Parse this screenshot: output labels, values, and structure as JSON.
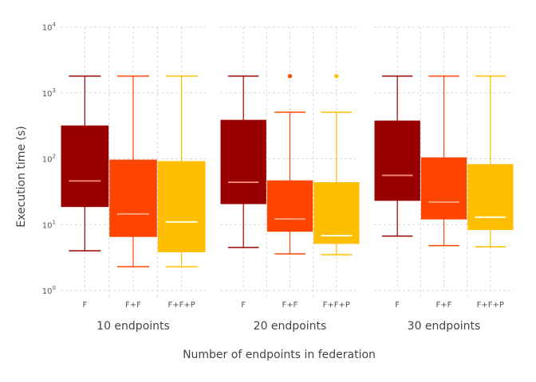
{
  "chart_data": {
    "type": "box",
    "xlabel": "Number of endpoints in federation",
    "ylabel": "Execution time (s)",
    "yscale": "log",
    "ylim": [
      1,
      10000
    ],
    "yticks": [
      {
        "value": 1,
        "base": "10",
        "exp": "0"
      },
      {
        "value": 10,
        "base": "10",
        "exp": "1"
      },
      {
        "value": 100,
        "base": "10",
        "exp": "2"
      },
      {
        "value": 1000,
        "base": "10",
        "exp": "3"
      },
      {
        "value": 10000,
        "base": "10",
        "exp": "4"
      }
    ],
    "colors": {
      "F": "#990000",
      "F+F": "#ff4500",
      "F+F+P": "#ffbf00"
    },
    "median_colors": {
      "F": "#f08070",
      "F+F": "#ffa07a",
      "F+F+P": "#ffffe0"
    },
    "groups": [
      {
        "label": "10 endpoints",
        "boxes": [
          {
            "category": "F",
            "whisker_low": 4.0,
            "q1": 18.5,
            "median": 46,
            "q3": 320,
            "whisker_high": 1800,
            "outliers": []
          },
          {
            "category": "F+F",
            "whisker_low": 2.3,
            "q1": 6.5,
            "median": 14.5,
            "q3": 97,
            "whisker_high": 1800,
            "outliers": []
          },
          {
            "category": "F+F+P",
            "whisker_low": 2.3,
            "q1": 3.8,
            "median": 11,
            "q3": 92,
            "whisker_high": 1800,
            "outliers": []
          }
        ]
      },
      {
        "label": "20 endpoints",
        "boxes": [
          {
            "category": "F",
            "whisker_low": 4.5,
            "q1": 20.5,
            "median": 44,
            "q3": 390,
            "whisker_high": 1800,
            "outliers": []
          },
          {
            "category": "F+F",
            "whisker_low": 3.6,
            "q1": 7.8,
            "median": 12.2,
            "q3": 47,
            "whisker_high": 510,
            "outliers": [
              1800
            ]
          },
          {
            "category": "F+F+P",
            "whisker_low": 3.5,
            "q1": 5.1,
            "median": 6.8,
            "q3": 44,
            "whisker_high": 510,
            "outliers": [
              1800
            ]
          }
        ]
      },
      {
        "label": "30 endpoints",
        "boxes": [
          {
            "category": "F",
            "whisker_low": 6.7,
            "q1": 23,
            "median": 56,
            "q3": 380,
            "whisker_high": 1800,
            "outliers": []
          },
          {
            "category": "F+F",
            "whisker_low": 4.8,
            "q1": 12,
            "median": 22,
            "q3": 105,
            "whisker_high": 1800,
            "outliers": []
          },
          {
            "category": "F+F+P",
            "whisker_low": 4.6,
            "q1": 8.3,
            "median": 13,
            "q3": 83,
            "whisker_high": 1800,
            "outliers": []
          }
        ]
      }
    ]
  }
}
